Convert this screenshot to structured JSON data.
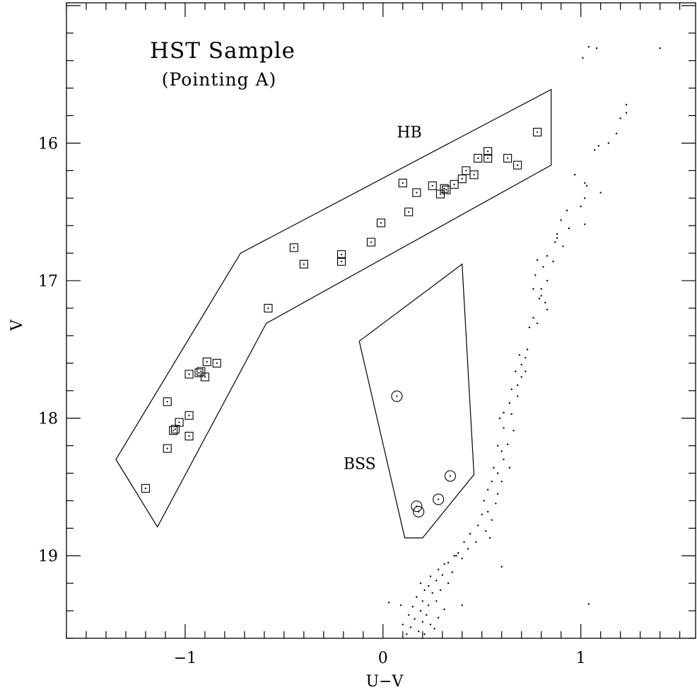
{
  "chart_data": {
    "type": "scatter",
    "title": "HST Sample",
    "subtitle": "(Pointing A)",
    "xlabel": "U−V",
    "ylabel": "V",
    "xlim": [
      -1.6,
      1.58
    ],
    "ylim": [
      19.6,
      14.98
    ],
    "y_inverted": true,
    "x_ticks": [
      {
        "value": -1,
        "label": "−1"
      },
      {
        "value": 0,
        "label": "0"
      },
      {
        "value": 1,
        "label": "1"
      }
    ],
    "y_ticks": [
      {
        "value": 16,
        "label": "16"
      },
      {
        "value": 17,
        "label": "17"
      },
      {
        "value": 18,
        "label": "18"
      },
      {
        "value": 19,
        "label": "19"
      }
    ],
    "regions": [
      {
        "label": "HB",
        "label_pos": [
          0.07,
          15.96
        ],
        "polygon": [
          [
            -1.35,
            18.3
          ],
          [
            -1.14,
            18.79
          ],
          [
            -0.59,
            17.31
          ],
          [
            0.85,
            16.16
          ],
          [
            0.85,
            15.61
          ],
          [
            -0.72,
            16.8
          ]
        ]
      },
      {
        "label": "BSS",
        "label_pos": [
          -0.2,
          18.37
        ],
        "polygon": [
          [
            -0.12,
            17.44
          ],
          [
            0.11,
            18.87
          ],
          [
            0.2,
            18.87
          ],
          [
            0.46,
            18.41
          ],
          [
            0.4,
            16.88
          ]
        ]
      }
    ],
    "series": [
      {
        "marker": "square-dot",
        "points": [
          [
            -1.2,
            18.51
          ],
          [
            -1.09,
            18.22
          ],
          [
            -1.09,
            17.88
          ],
          [
            -1.06,
            18.09
          ],
          [
            -1.05,
            18.08
          ],
          [
            -1.03,
            18.03
          ],
          [
            -0.98,
            17.98
          ],
          [
            -0.98,
            18.13
          ],
          [
            -0.98,
            17.68
          ],
          [
            -0.93,
            17.67
          ],
          [
            -0.92,
            17.66
          ],
          [
            -0.9,
            17.7
          ],
          [
            -0.89,
            17.59
          ],
          [
            -0.84,
            17.6
          ],
          [
            -0.58,
            17.2
          ],
          [
            -0.45,
            16.76
          ],
          [
            -0.4,
            16.88
          ],
          [
            -0.21,
            16.81
          ],
          [
            -0.21,
            16.86
          ],
          [
            -0.06,
            16.72
          ],
          [
            -0.01,
            16.58
          ],
          [
            0.1,
            16.29
          ],
          [
            0.13,
            16.5
          ],
          [
            0.17,
            16.36
          ],
          [
            0.25,
            16.31
          ],
          [
            0.29,
            16.37
          ],
          [
            0.31,
            16.33
          ],
          [
            0.32,
            16.34
          ],
          [
            0.36,
            16.3
          ],
          [
            0.4,
            16.26
          ],
          [
            0.42,
            16.2
          ],
          [
            0.46,
            16.23
          ],
          [
            0.48,
            16.11
          ],
          [
            0.53,
            16.11
          ],
          [
            0.53,
            16.06
          ],
          [
            0.63,
            16.11
          ],
          [
            0.68,
            16.16
          ],
          [
            0.78,
            15.92
          ]
        ]
      },
      {
        "marker": "circle-dot",
        "points": [
          [
            0.07,
            17.84
          ],
          [
            0.17,
            18.64
          ],
          [
            0.18,
            18.68
          ],
          [
            0.28,
            18.59
          ],
          [
            0.34,
            18.42
          ]
        ]
      },
      {
        "marker": "dot",
        "points": [
          [
            1.01,
            15.38
          ],
          [
            1.04,
            15.3
          ],
          [
            1.08,
            15.31
          ],
          [
            1.4,
            15.31
          ],
          [
            1.23,
            15.72
          ],
          [
            1.23,
            15.78
          ],
          [
            1.2,
            15.82
          ],
          [
            1.18,
            15.93
          ],
          [
            1.14,
            16.0
          ],
          [
            1.09,
            16.02
          ],
          [
            1.07,
            16.05
          ],
          [
            0.97,
            16.23
          ],
          [
            1.02,
            16.29
          ],
          [
            1.03,
            16.31
          ],
          [
            1.02,
            16.4
          ],
          [
            1.1,
            16.36
          ],
          [
            1.0,
            16.46
          ],
          [
            1.02,
            16.59
          ],
          [
            0.93,
            16.49
          ],
          [
            0.9,
            16.56
          ],
          [
            0.94,
            16.62
          ],
          [
            0.88,
            16.66
          ],
          [
            0.88,
            16.69
          ],
          [
            0.91,
            16.75
          ],
          [
            0.87,
            16.72
          ],
          [
            0.83,
            16.82
          ],
          [
            0.86,
            16.86
          ],
          [
            0.78,
            16.85
          ],
          [
            0.81,
            16.9
          ],
          [
            0.77,
            16.96
          ],
          [
            0.83,
            17.0
          ],
          [
            0.8,
            17.06
          ],
          [
            0.8,
            17.11
          ],
          [
            0.79,
            17.13
          ],
          [
            0.76,
            17.06
          ],
          [
            0.82,
            17.16
          ],
          [
            0.83,
            17.21
          ],
          [
            0.76,
            17.27
          ],
          [
            0.78,
            17.31
          ],
          [
            0.74,
            17.34
          ],
          [
            0.73,
            17.5
          ],
          [
            0.72,
            17.56
          ],
          [
            0.69,
            17.54
          ],
          [
            0.7,
            17.61
          ],
          [
            0.72,
            17.66
          ],
          [
            0.7,
            17.7
          ],
          [
            0.67,
            17.66
          ],
          [
            0.68,
            17.76
          ],
          [
            0.65,
            17.79
          ],
          [
            0.68,
            17.84
          ],
          [
            0.64,
            17.89
          ],
          [
            0.61,
            17.96
          ],
          [
            0.65,
            17.97
          ],
          [
            0.59,
            18.0
          ],
          [
            0.61,
            18.07
          ],
          [
            0.66,
            18.09
          ],
          [
            0.58,
            18.2
          ],
          [
            0.63,
            18.19
          ],
          [
            0.6,
            18.24
          ],
          [
            0.61,
            18.3
          ],
          [
            0.56,
            18.36
          ],
          [
            0.64,
            18.36
          ],
          [
            0.58,
            18.4
          ],
          [
            0.55,
            18.46
          ],
          [
            0.6,
            18.46
          ],
          [
            0.53,
            18.52
          ],
          [
            0.58,
            18.55
          ],
          [
            0.51,
            18.6
          ],
          [
            0.57,
            18.62
          ],
          [
            0.53,
            18.68
          ],
          [
            0.5,
            18.7
          ],
          [
            0.55,
            18.74
          ],
          [
            0.48,
            18.78
          ],
          [
            0.52,
            18.82
          ],
          [
            0.44,
            18.84
          ],
          [
            0.47,
            18.9
          ],
          [
            0.41,
            18.9
          ],
          [
            0.43,
            18.95
          ],
          [
            0.38,
            18.98
          ],
          [
            0.36,
            19.0
          ],
          [
            0.4,
            19.02
          ],
          [
            0.33,
            19.05
          ],
          [
            0.31,
            19.06
          ],
          [
            0.28,
            19.1
          ],
          [
            0.3,
            19.14
          ],
          [
            0.24,
            19.15
          ],
          [
            0.27,
            19.18
          ],
          [
            0.23,
            19.22
          ],
          [
            0.19,
            19.2
          ],
          [
            0.21,
            19.25
          ],
          [
            0.25,
            19.27
          ],
          [
            0.17,
            19.3
          ],
          [
            0.2,
            19.33
          ],
          [
            0.23,
            19.36
          ],
          [
            0.15,
            19.37
          ],
          [
            0.19,
            19.4
          ],
          [
            0.22,
            19.43
          ],
          [
            0.13,
            19.43
          ],
          [
            0.16,
            19.46
          ],
          [
            0.2,
            19.48
          ],
          [
            0.24,
            19.5
          ],
          [
            0.1,
            19.5
          ],
          [
            0.14,
            19.52
          ],
          [
            0.18,
            19.55
          ],
          [
            0.12,
            19.57
          ],
          [
            0.21,
            19.57
          ],
          [
            0.26,
            19.53
          ],
          [
            0.28,
            19.45
          ],
          [
            0.31,
            19.39
          ],
          [
            0.27,
            19.33
          ],
          [
            0.29,
            19.25
          ],
          [
            0.33,
            19.2
          ],
          [
            0.35,
            19.12
          ],
          [
            0.09,
            19.36
          ],
          [
            0.03,
            19.34
          ],
          [
            0.6,
            19.08
          ],
          [
            1.04,
            19.35
          ],
          [
            0.54,
            18.87
          ],
          [
            0.4,
            19.36
          ],
          [
            0.37,
            19.0
          ]
        ]
      }
    ]
  }
}
